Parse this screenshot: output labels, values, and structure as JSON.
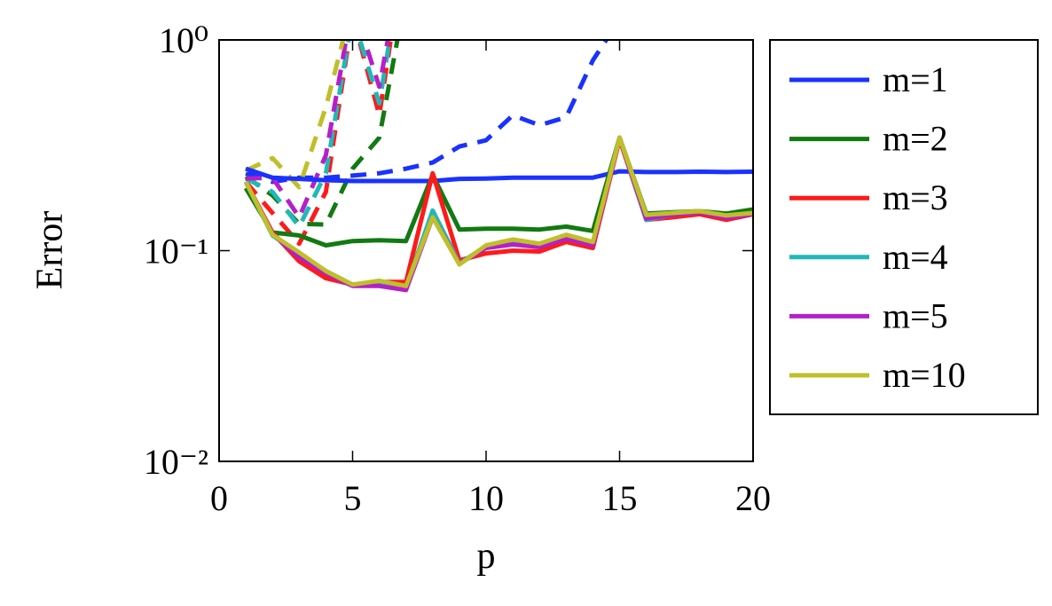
{
  "chart_data": {
    "type": "line",
    "x_label": "p",
    "y_label": "Error",
    "x": [
      1,
      2,
      3,
      4,
      5,
      6,
      7,
      8,
      9,
      10,
      11,
      12,
      13,
      14,
      15,
      16,
      17,
      18,
      19,
      20
    ],
    "xlim": [
      0,
      20
    ],
    "xticks": [
      0,
      5,
      10,
      15,
      20
    ],
    "ylim": [
      0.01,
      1
    ],
    "y_scale": "log",
    "yticks": [
      {
        "value": 0.01,
        "label": "10⁻²"
      },
      {
        "value": 0.1,
        "label": "10⁻¹"
      },
      {
        "value": 1,
        "label": "10⁰"
      }
    ],
    "legend": "outside-right",
    "series": [
      {
        "name": "m=1",
        "color": "#1a32ff",
        "values": [
          0.245,
          0.222,
          0.219,
          0.216,
          0.214,
          0.214,
          0.214,
          0.214,
          0.219,
          0.22,
          0.222,
          0.222,
          0.222,
          0.222,
          0.238,
          0.236,
          0.236,
          0.237,
          0.236,
          0.237
        ]
      },
      {
        "name": "m=2",
        "color": "#127a12",
        "values": [
          0.198,
          0.122,
          0.118,
          0.106,
          0.111,
          0.112,
          0.111,
          0.229,
          0.126,
          0.127,
          0.127,
          0.126,
          0.13,
          0.124,
          0.344,
          0.15,
          0.152,
          0.154,
          0.15,
          0.157
        ]
      },
      {
        "name": "m=3",
        "color": "#ff1a1a",
        "values": [
          0.212,
          0.122,
          0.089,
          0.074,
          0.069,
          0.071,
          0.071,
          0.233,
          0.09,
          0.097,
          0.1,
          0.099,
          0.11,
          0.103,
          0.337,
          0.14,
          0.144,
          0.149,
          0.14,
          0.149
        ]
      },
      {
        "name": "m=4",
        "color": "#20b8b8",
        "values": [
          0.212,
          0.118,
          0.097,
          0.08,
          0.069,
          0.071,
          0.067,
          0.155,
          0.087,
          0.105,
          0.109,
          0.106,
          0.117,
          0.108,
          0.344,
          0.14,
          0.148,
          0.152,
          0.145,
          0.15
        ]
      },
      {
        "name": "m=5",
        "color": "#b420c8",
        "values": [
          0.212,
          0.12,
          0.093,
          0.078,
          0.068,
          0.068,
          0.065,
          0.144,
          0.087,
          0.103,
          0.107,
          0.104,
          0.114,
          0.106,
          0.344,
          0.142,
          0.148,
          0.152,
          0.143,
          0.149
        ]
      },
      {
        "name": "m=10",
        "color": "#bfbf2a",
        "values": [
          0.212,
          0.119,
          0.098,
          0.08,
          0.069,
          0.072,
          0.068,
          0.144,
          0.086,
          0.106,
          0.113,
          0.108,
          0.119,
          0.11,
          0.344,
          0.148,
          0.151,
          0.154,
          0.147,
          0.151
        ]
      },
      {
        "color": "#1a32ff",
        "dashed": true,
        "values": [
          0.233,
          0.212,
          0.222,
          0.222,
          0.227,
          0.233,
          0.245,
          0.262,
          0.312,
          0.334,
          0.439,
          0.394,
          0.43,
          0.8,
          1.25,
          null,
          null,
          null,
          null,
          null
        ]
      },
      {
        "color": "#127a12",
        "dashed": true,
        "values": [
          0.225,
          0.183,
          0.134,
          0.133,
          0.245,
          0.344,
          1.66,
          null,
          null,
          null,
          null,
          null,
          null,
          null,
          null,
          null,
          null,
          null,
          null,
          null
        ]
      },
      {
        "color": "#ff1a1a",
        "dashed": true,
        "values": [
          0.212,
          0.151,
          0.108,
          0.19,
          1.3,
          0.44,
          3,
          null,
          null,
          null,
          null,
          null,
          null,
          null,
          null,
          null,
          null,
          null,
          null,
          null
        ]
      },
      {
        "color": "#20b8b8",
        "dashed": true,
        "values": [
          0.22,
          0.19,
          0.13,
          0.233,
          1.3,
          0.5,
          3,
          null,
          null,
          null,
          null,
          null,
          null,
          null,
          null,
          null,
          null,
          null,
          null,
          null
        ]
      },
      {
        "color": "#b420c8",
        "dashed": true,
        "values": [
          0.22,
          0.222,
          0.144,
          0.284,
          1.5,
          0.6,
          3,
          null,
          null,
          null,
          null,
          null,
          null,
          null,
          null,
          null,
          null,
          null,
          null,
          null
        ]
      },
      {
        "color": "#bfbf2a",
        "dashed": true,
        "values": [
          0.24,
          0.275,
          0.2,
          0.48,
          1.5,
          null,
          null,
          null,
          null,
          null,
          null,
          null,
          null,
          null,
          null,
          null,
          null,
          null,
          null,
          null
        ]
      }
    ]
  }
}
